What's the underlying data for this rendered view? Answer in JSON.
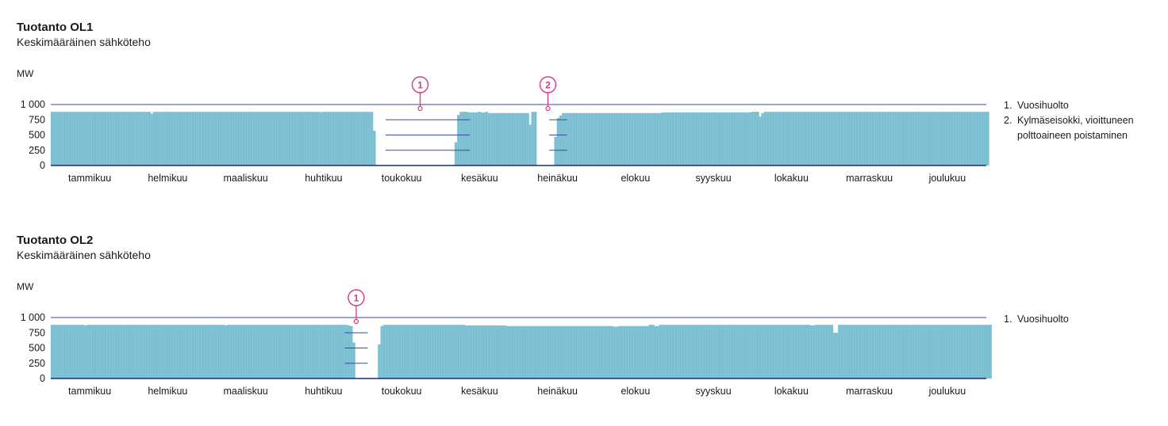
{
  "chart_data": [
    {
      "type": "bar",
      "title": "Tuotanto OL1",
      "subtitle": "Keskimääräinen sähköteho",
      "ylabel": "MW",
      "ylim": [
        0,
        1000
      ],
      "yticks": [
        "1 000",
        "750",
        "500",
        "250",
        "0"
      ],
      "ytick_values": [
        1000,
        750,
        500,
        250,
        0
      ],
      "months": [
        "tammikuu",
        "helmikuu",
        "maaliskuu",
        "huhtikuu",
        "toukokuu",
        "kesäkuu",
        "heinäkuu",
        "elokuu",
        "syyskuu",
        "lokakuu",
        "marraskuu",
        "joulukuu"
      ],
      "days": 366,
      "values": [
        880,
        880,
        880,
        880,
        880,
        880,
        880,
        880,
        880,
        880,
        880,
        880,
        880,
        880,
        880,
        880,
        880,
        880,
        880,
        880,
        880,
        880,
        880,
        880,
        880,
        880,
        880,
        880,
        880,
        880,
        880,
        880,
        880,
        880,
        880,
        880,
        880,
        880,
        880,
        850,
        880,
        880,
        880,
        880,
        880,
        880,
        880,
        880,
        880,
        880,
        880,
        880,
        880,
        880,
        880,
        880,
        880,
        880,
        880,
        880,
        880,
        880,
        880,
        880,
        880,
        880,
        880,
        880,
        880,
        880,
        880,
        880,
        880,
        880,
        880,
        880,
        880,
        880,
        880,
        880,
        880,
        880,
        880,
        880,
        880,
        880,
        880,
        880,
        880,
        880,
        880,
        880,
        880,
        880,
        880,
        880,
        880,
        880,
        880,
        880,
        880,
        880,
        880,
        880,
        880,
        875,
        880,
        880,
        880,
        880,
        880,
        880,
        880,
        880,
        880,
        880,
        880,
        880,
        880,
        880,
        880,
        880,
        880,
        880,
        880,
        880,
        570,
        0,
        0,
        0,
        0,
        0,
        0,
        0,
        0,
        0,
        0,
        0,
        0,
        0,
        0,
        0,
        0,
        0,
        0,
        0,
        0,
        0,
        0,
        0,
        0,
        0,
        0,
        0,
        0,
        0,
        0,
        0,
        380,
        830,
        880,
        880,
        880,
        870,
        870,
        870,
        870,
        880,
        870,
        870,
        880,
        860,
        860,
        860,
        860,
        860,
        860,
        860,
        860,
        860,
        860,
        860,
        860,
        860,
        860,
        860,
        860,
        670,
        880,
        880,
        0,
        0,
        0,
        0,
        0,
        0,
        0,
        470,
        780,
        820,
        860,
        860,
        860,
        860,
        860,
        860,
        860,
        860,
        860,
        860,
        860,
        860,
        860,
        860,
        860,
        860,
        860,
        860,
        860,
        860,
        860,
        860,
        860,
        860,
        860,
        860,
        860,
        860,
        860,
        860,
        860,
        860,
        860,
        860,
        860,
        860,
        860,
        860,
        860,
        870,
        870,
        870,
        870,
        870,
        870,
        870,
        870,
        870,
        870,
        870,
        870,
        870,
        870,
        870,
        870,
        870,
        870,
        870,
        870,
        870,
        870,
        870,
        870,
        870,
        870,
        870,
        870,
        870,
        870,
        870,
        870,
        870,
        870,
        870,
        880,
        880,
        880,
        800,
        860,
        880,
        880,
        880,
        880,
        880,
        880,
        880,
        880,
        880,
        880,
        880,
        880,
        880,
        880,
        880,
        880,
        880,
        880,
        880,
        880,
        880,
        880,
        880,
        880,
        880,
        880,
        880,
        880,
        880,
        880,
        880,
        880,
        880,
        880,
        880,
        880,
        880,
        880,
        880,
        880,
        880,
        880,
        880,
        880,
        880,
        880,
        880,
        880,
        880,
        880,
        880,
        880,
        880,
        880,
        880,
        880,
        880,
        880,
        880,
        880,
        880,
        880,
        880,
        880,
        880,
        880,
        880,
        880,
        880,
        880,
        880,
        880,
        880,
        880,
        880,
        880,
        880,
        880,
        880,
        880,
        880,
        880,
        880,
        880,
        880,
        880,
        880,
        880
      ],
      "annotations": [
        {
          "label": "1",
          "x_start": 131,
          "x_end": 164,
          "mark_day": 144
        },
        {
          "label": "2",
          "x_start": 195,
          "x_end": 202,
          "mark_day": 194
        }
      ],
      "legend": [
        {
          "num": "1.",
          "text": "Vuosihuolto"
        },
        {
          "num": "2.",
          "text": "Kylmäseisokki, vioittuneen polttoaineen poistaminen"
        }
      ],
      "colors": {
        "bar": "#7bbfd3",
        "axis": "#1f2b6e",
        "grid": "#3a4a9a",
        "annotation": "#d33a8a"
      }
    },
    {
      "type": "bar",
      "title": "Tuotanto OL2",
      "subtitle": "Keskimääräinen sähköteho",
      "ylabel": "MW",
      "ylim": [
        0,
        1000
      ],
      "yticks": [
        "1 000",
        "750",
        "500",
        "250",
        "0"
      ],
      "ytick_values": [
        1000,
        750,
        500,
        250,
        0
      ],
      "months": [
        "tammikuu",
        "helmikuu",
        "maaliskuu",
        "huhtikuu",
        "toukokuu",
        "kesäkuu",
        "heinäkuu",
        "elokuu",
        "syyskuu",
        "lokakuu",
        "marraskuu",
        "joulukuu"
      ],
      "days": 366,
      "values": [
        880,
        880,
        880,
        880,
        880,
        880,
        880,
        880,
        880,
        880,
        880,
        880,
        880,
        870,
        880,
        880,
        880,
        880,
        880,
        880,
        880,
        880,
        880,
        880,
        880,
        880,
        880,
        880,
        880,
        880,
        880,
        880,
        880,
        880,
        880,
        880,
        880,
        880,
        880,
        880,
        880,
        880,
        880,
        880,
        880,
        880,
        880,
        880,
        880,
        880,
        880,
        880,
        880,
        880,
        880,
        880,
        880,
        880,
        880,
        880,
        880,
        880,
        880,
        880,
        880,
        880,
        880,
        880,
        870,
        880,
        880,
        880,
        880,
        880,
        880,
        880,
        880,
        880,
        880,
        880,
        880,
        880,
        880,
        880,
        880,
        880,
        880,
        880,
        880,
        880,
        880,
        880,
        880,
        880,
        880,
        880,
        880,
        880,
        880,
        880,
        880,
        880,
        880,
        880,
        880,
        880,
        880,
        880,
        880,
        880,
        880,
        880,
        880,
        880,
        880,
        880,
        870,
        860,
        590,
        0,
        0,
        0,
        0,
        0,
        0,
        0,
        0,
        0,
        560,
        860,
        880,
        880,
        880,
        880,
        880,
        880,
        880,
        880,
        880,
        880,
        880,
        880,
        880,
        880,
        880,
        880,
        880,
        880,
        880,
        880,
        880,
        880,
        880,
        880,
        880,
        880,
        880,
        880,
        880,
        880,
        880,
        880,
        870,
        870,
        870,
        870,
        870,
        870,
        870,
        870,
        870,
        870,
        870,
        870,
        870,
        870,
        870,
        870,
        860,
        860,
        860,
        860,
        860,
        860,
        860,
        860,
        860,
        860,
        860,
        860,
        860,
        860,
        860,
        860,
        860,
        860,
        860,
        860,
        860,
        860,
        860,
        860,
        860,
        860,
        860,
        860,
        860,
        860,
        860,
        860,
        860,
        860,
        860,
        860,
        860,
        860,
        860,
        860,
        860,
        860,
        850,
        850,
        860,
        860,
        860,
        860,
        860,
        860,
        860,
        860,
        860,
        860,
        860,
        860,
        880,
        880,
        860,
        860,
        880,
        880,
        880,
        880,
        880,
        880,
        880,
        880,
        880,
        880,
        880,
        880,
        880,
        880,
        880,
        880,
        880,
        880,
        880,
        880,
        880,
        880,
        880,
        880,
        880,
        880,
        880,
        880,
        880,
        880,
        880,
        880,
        880,
        880,
        880,
        880,
        880,
        880,
        880,
        880,
        880,
        880,
        880,
        880,
        880,
        880,
        880,
        880,
        880,
        880,
        880,
        880,
        880,
        880,
        880,
        880,
        880,
        880,
        880,
        870,
        870,
        880,
        880,
        880,
        880,
        880,
        880,
        880,
        750,
        750,
        880,
        880,
        880,
        880,
        880,
        880,
        880,
        880,
        880,
        880,
        880,
        880,
        880,
        880,
        880,
        880,
        880,
        880,
        880,
        880,
        880,
        880,
        880,
        880,
        880,
        880,
        880,
        880,
        880,
        880,
        880,
        880,
        880,
        880,
        880,
        880,
        880,
        880,
        880,
        880,
        880,
        880,
        880,
        880,
        880,
        880,
        880,
        880,
        880,
        880,
        880,
        880,
        880,
        880,
        880,
        880,
        880,
        880,
        880,
        880
      ],
      "annotations": [
        {
          "label": "1",
          "x_start": 115,
          "x_end": 124,
          "mark_day": 119
        }
      ],
      "legend": [
        {
          "num": "1.",
          "text": "Vuosihuolto"
        }
      ],
      "colors": {
        "bar": "#7bbfd3",
        "axis": "#1f2b6e",
        "grid": "#3a4a9a",
        "annotation": "#d33a8a"
      }
    }
  ]
}
